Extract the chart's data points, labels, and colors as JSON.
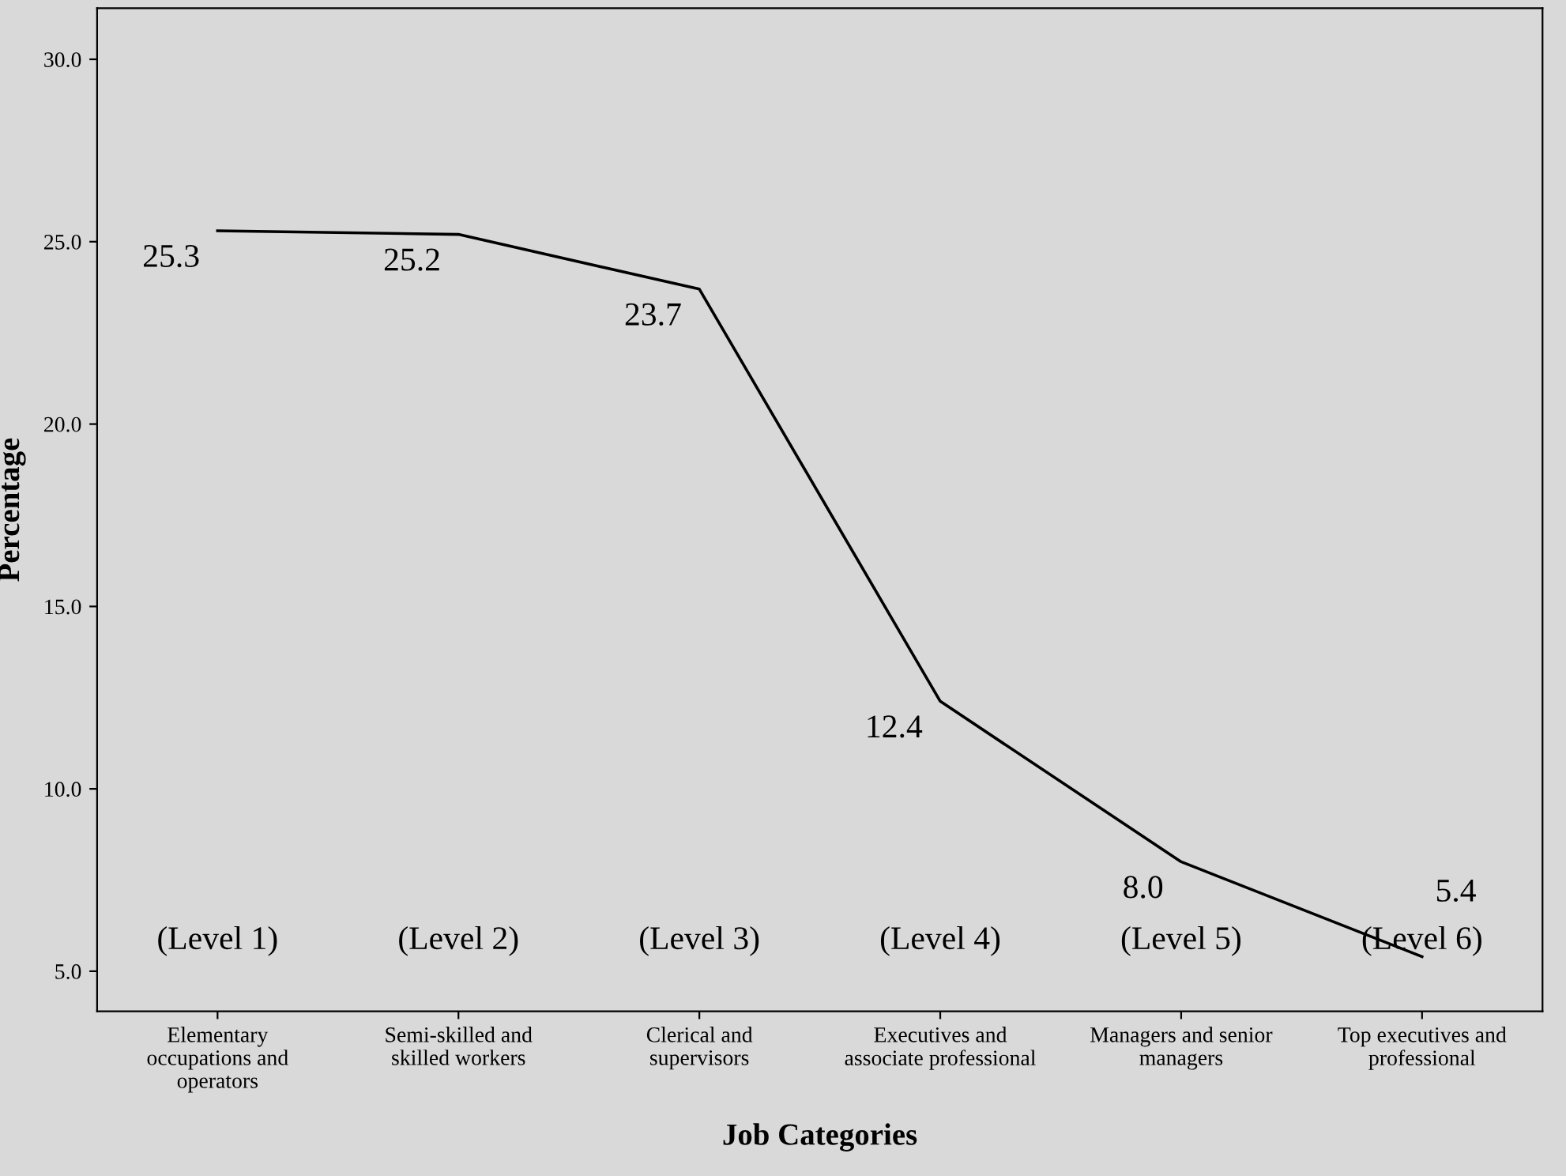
{
  "chart_data": {
    "type": "line",
    "xlabel": "Job Categories",
    "ylabel": "Percentage",
    "categories": [
      "Elementary\noccupations and\noperators",
      "Semi-skilled and\nskilled workers",
      "Clerical and\nsupervisors",
      "Executives and\nassociate professional",
      "Managers and senior\nmanagers",
      "Top executives and\nprofessional"
    ],
    "series": [
      {
        "color": "#000000",
        "values": [
          25.3,
          25.2,
          23.7,
          12.4,
          8.0,
          5.4
        ]
      }
    ],
    "value_labels": [
      "25.3",
      "25.2",
      "23.7",
      "12.4",
      "8.0",
      "5.4"
    ],
    "ylim": [
      3.9,
      31.4
    ],
    "yticks": [
      {
        "value": 5,
        "label": "5.0"
      },
      {
        "value": 10,
        "label": "10.0"
      },
      {
        "value": 15,
        "label": "15.0"
      },
      {
        "value": 20,
        "label": "20.0"
      },
      {
        "value": 25,
        "label": "25.0"
      },
      {
        "value": 30,
        "label": "30.0"
      }
    ],
    "grid": false,
    "legend": false,
    "marker": "none",
    "line_style": "solid",
    "annotations": [
      "(Level 1)",
      "(Level 2)",
      "(Level 3)",
      "(Level 4)",
      "(Level 5)",
      "(Level 6)"
    ]
  }
}
